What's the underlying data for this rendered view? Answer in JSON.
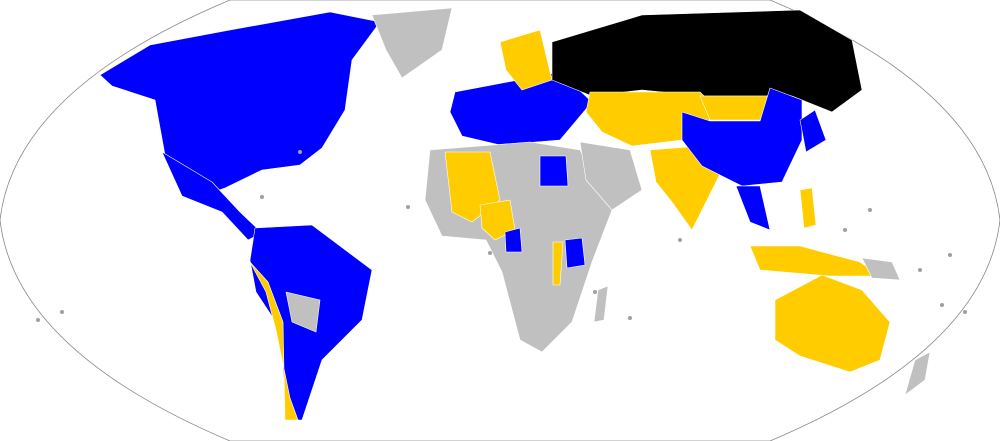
{
  "map": {
    "projection": "robinson",
    "colors": {
      "blue": "#0000ff",
      "yellow": "#ffcc00",
      "black": "#000000",
      "gray": "#c0c0c0",
      "ocean": "#ffffff"
    },
    "regions": [
      {
        "id": "north-america",
        "fill": "blue"
      },
      {
        "id": "greenland",
        "fill": "gray"
      },
      {
        "id": "central-america",
        "fill": "blue"
      },
      {
        "id": "south-america",
        "fill": "blue"
      },
      {
        "id": "peru-chile",
        "fill": "yellow"
      },
      {
        "id": "bolivia-paraguay",
        "fill": "gray"
      },
      {
        "id": "europe",
        "fill": "blue"
      },
      {
        "id": "scandinavia",
        "fill": "yellow"
      },
      {
        "id": "russia",
        "fill": "black"
      },
      {
        "id": "africa",
        "fill": "gray"
      },
      {
        "id": "algeria-niger",
        "fill": "yellow"
      },
      {
        "id": "nigeria-chad",
        "fill": "yellow"
      },
      {
        "id": "egypt",
        "fill": "blue"
      },
      {
        "id": "congo",
        "fill": "blue"
      },
      {
        "id": "kenya",
        "fill": "blue"
      },
      {
        "id": "uganda",
        "fill": "yellow"
      },
      {
        "id": "madagascar",
        "fill": "gray"
      },
      {
        "id": "middle-east-central-asia",
        "fill": "yellow"
      },
      {
        "id": "arabia",
        "fill": "gray"
      },
      {
        "id": "india",
        "fill": "yellow"
      },
      {
        "id": "mongolia",
        "fill": "yellow"
      },
      {
        "id": "china",
        "fill": "blue"
      },
      {
        "id": "japan",
        "fill": "blue"
      },
      {
        "id": "southeast-asia",
        "fill": "blue"
      },
      {
        "id": "philippines",
        "fill": "yellow"
      },
      {
        "id": "indonesia",
        "fill": "yellow"
      },
      {
        "id": "papua",
        "fill": "gray"
      },
      {
        "id": "australia",
        "fill": "yellow"
      },
      {
        "id": "new-zealand",
        "fill": "gray"
      }
    ]
  }
}
